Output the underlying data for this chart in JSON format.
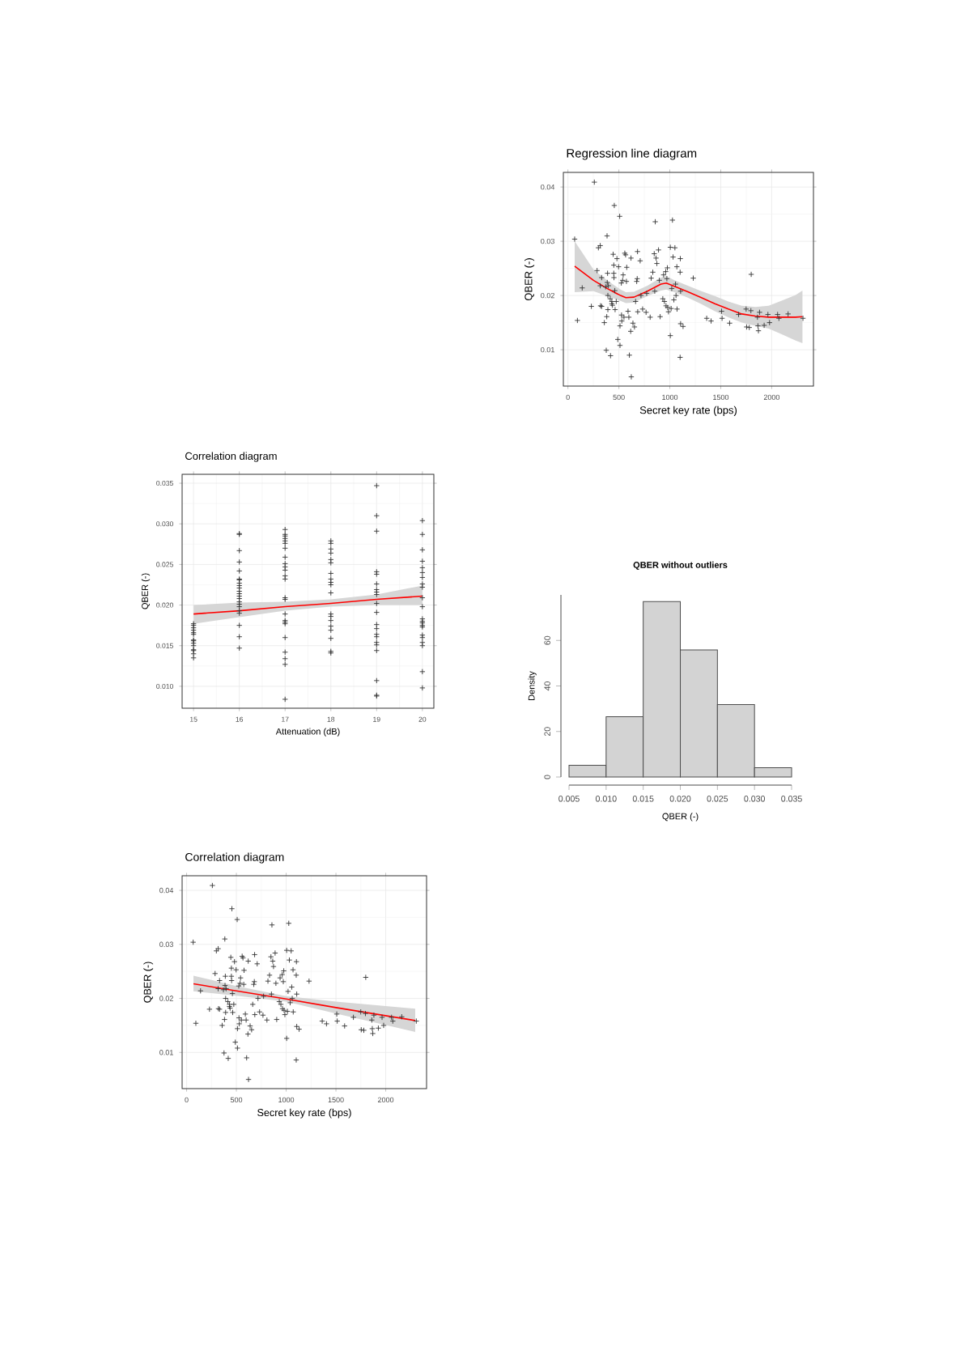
{
  "chart_data": [
    {
      "type": "scatter",
      "title": "Regression line diagram",
      "xlabel": "Secret key rate (bps)",
      "ylabel": "QBER (-)",
      "xlim": [
        -45,
        2410
      ],
      "ylim": [
        0.0033,
        0.0427
      ],
      "xticks": [
        0,
        500,
        1000,
        1500,
        2000
      ],
      "yticks": [
        0.01,
        0.02,
        0.03,
        0.04
      ],
      "grid": true,
      "marker": "cross",
      "series": [
        {
          "type": "scatter",
          "color": "#333333",
          "x": [
            66,
            93,
            140,
            230,
            259,
            286,
            299,
            317,
            317,
            320,
            331,
            331,
            357,
            370,
            376,
            381,
            384,
            386,
            389,
            392,
            392,
            397,
            418,
            415,
            431,
            431,
            437,
            444,
            450,
            450,
            452,
            455,
            460,
            463,
            474,
            481,
            489,
            497,
            508,
            511,
            511,
            524,
            526,
            529,
            537,
            542,
            550,
            558,
            566,
            574,
            577,
            590,
            598,
            603,
            616,
            619,
            622,
            638,
            653,
            664,
            675,
            680,
            683,
            685,
            709,
            717,
            733,
            767,
            773,
            807,
            817,
            833,
            847,
            852,
            857,
            865,
            873,
            889,
            897,
            905,
            931,
            939,
            947,
            960,
            963,
            971,
            976,
            979,
            987,
            1005,
            1005,
            1013,
            1019,
            1026,
            1032,
            1040,
            1050,
            1056,
            1061,
            1069,
            1071,
            1103,
            1101,
            1106,
            1101,
            1106,
            1130,
            1230,
            1362,
            1405,
            1508,
            1513,
            1587,
            1675,
            1749,
            1754,
            1780,
            1799,
            1796,
            1860,
            1865,
            1870,
            1881,
            1926,
            1963,
            1979,
            2058,
            2071,
            2161,
            2307
          ],
          "values": [
            0.0304,
            0.0154,
            0.0214,
            0.018,
            0.0409,
            0.0246,
            0.0288,
            0.0292,
            0.0218,
            0.0181,
            0.018,
            0.0233,
            0.015,
            0.0216,
            0.0099,
            0.0161,
            0.031,
            0.0224,
            0.0241,
            0.0174,
            0.02,
            0.0218,
            0.0089,
            0.0194,
            0.0189,
            0.0185,
            0.0182,
            0.0276,
            0.0256,
            0.0241,
            0.0233,
            0.0366,
            0.0209,
            0.0174,
            0.0189,
            0.0268,
            0.0119,
            0.0253,
            0.0346,
            0.0144,
            0.0108,
            0.0223,
            0.0164,
            0.0153,
            0.0228,
            0.0238,
            0.016,
            0.0278,
            0.0275,
            0.0226,
            0.0252,
            0.0171,
            0.016,
            0.009,
            0.0134,
            0.0269,
            0.005,
            0.0149,
            0.0142,
            0.0189,
            0.0226,
            0.0231,
            0.0281,
            0.017,
            0.0264,
            0.02,
            0.0175,
            0.0169,
            0.0204,
            0.016,
            0.0232,
            0.0243,
            0.0277,
            0.0208,
            0.0336,
            0.0269,
            0.0259,
            0.0284,
            0.0228,
            0.0161,
            0.0194,
            0.0238,
            0.0189,
            0.0244,
            0.0181,
            0.0231,
            0.0251,
            0.0178,
            0.017,
            0.0126,
            0.0289,
            0.0176,
            0.0213,
            0.0339,
            0.0271,
            0.0192,
            0.0288,
            0.0221,
            0.02,
            0.0253,
            0.0175,
            0.0268,
            0.0243,
            0.0208,
            0.0086,
            0.0148,
            0.0143,
            0.0232,
            0.0158,
            0.0153,
            0.0171,
            0.0158,
            0.0149,
            0.0165,
            0.0175,
            0.0142,
            0.0141,
            0.0239,
            0.0172,
            0.016,
            0.0144,
            0.0135,
            0.0169,
            0.0145,
            0.0165,
            0.015,
            0.0165,
            0.0158,
            0.0166,
            0.0158
          ]
        },
        {
          "type": "line",
          "marker": "none",
          "color": "#ff0000",
          "x": [
            66,
            251,
            384,
            516,
            569,
            648,
            780,
            913,
            966,
            1045,
            1177,
            1310,
            1442,
            1574,
            1706,
            1839,
            1971,
            2103,
            2235,
            2302
          ],
          "values": [
            0.0254,
            0.0228,
            0.0213,
            0.02,
            0.0196,
            0.0197,
            0.0208,
            0.0221,
            0.0223,
            0.0217,
            0.0207,
            0.0196,
            0.0185,
            0.0175,
            0.0166,
            0.0162,
            0.016,
            0.016,
            0.016,
            0.0161
          ],
          "lower": [
            0.0206,
            0.0208,
            0.0199,
            0.019,
            0.0186,
            0.0187,
            0.0199,
            0.0209,
            0.0211,
            0.0206,
            0.0196,
            0.0184,
            0.0171,
            0.016,
            0.015,
            0.0144,
            0.0139,
            0.0128,
            0.0117,
            0.0112
          ],
          "upper": [
            0.03,
            0.0248,
            0.0228,
            0.0211,
            0.0206,
            0.0207,
            0.0218,
            0.0233,
            0.0236,
            0.0228,
            0.0218,
            0.0208,
            0.0199,
            0.0189,
            0.0181,
            0.0179,
            0.0181,
            0.0191,
            0.0201,
            0.0209
          ]
        }
      ]
    },
    {
      "type": "scatter",
      "title": "Correlation diagram",
      "xlabel": "Attenuation (dB)",
      "ylabel": "QBER (-)",
      "xlim": [
        14.75,
        20.25
      ],
      "ylim": [
        0.0073,
        0.0361
      ],
      "xticks": [
        15,
        16,
        17,
        18,
        19,
        20
      ],
      "yticks": [
        {
          "value": 0.01,
          "label": "0.010"
        },
        0.015,
        {
          "value": 0.02,
          "label": "0.020"
        },
        0.025,
        {
          "value": 0.03,
          "label": "0.030"
        },
        0.035
      ],
      "grid": true,
      "marker": "cross",
      "series": [
        {
          "type": "scatter",
          "color": "#333333",
          "x": [
            15,
            15,
            15,
            15,
            15,
            15,
            15,
            15,
            15,
            15,
            15,
            15,
            15,
            15,
            16,
            16,
            16,
            16,
            16,
            16,
            16,
            16,
            16,
            16,
            16,
            16,
            16,
            16,
            16,
            16,
            16,
            16,
            16,
            16,
            16,
            16,
            17,
            17,
            17,
            17,
            17,
            17,
            17,
            17,
            17,
            17,
            17,
            17,
            17,
            17,
            17,
            17,
            17,
            17,
            17,
            17,
            17,
            17,
            17,
            17,
            18,
            18,
            18,
            18,
            18,
            18,
            18,
            18,
            18,
            18,
            18,
            18,
            18,
            18,
            18,
            18,
            18,
            18,
            18,
            19,
            19,
            19,
            19,
            19,
            19,
            19,
            19,
            19,
            19,
            19,
            19,
            19,
            19,
            19,
            19,
            19,
            19,
            19,
            19,
            19,
            20,
            20,
            20,
            20,
            20,
            20,
            20,
            20,
            20,
            20,
            20,
            20,
            20,
            20,
            20,
            20,
            20,
            20,
            20,
            20,
            20,
            20
          ],
          "values": [
            0.0177,
            0.0175,
            0.0172,
            0.0169,
            0.0166,
            0.0164,
            0.0157,
            0.0156,
            0.0153,
            0.015,
            0.0145,
            0.0144,
            0.014,
            0.0135,
            0.0288,
            0.0287,
            0.0267,
            0.0253,
            0.0242,
            0.0232,
            0.0231,
            0.0227,
            0.0224,
            0.0221,
            0.0217,
            0.0214,
            0.0211,
            0.0208,
            0.0204,
            0.0201,
            0.0198,
            0.0193,
            0.019,
            0.0175,
            0.0161,
            0.0147,
            0.0293,
            0.0287,
            0.0285,
            0.0282,
            0.0279,
            0.0276,
            0.027,
            0.0259,
            0.0251,
            0.0247,
            0.0243,
            0.0236,
            0.0232,
            0.0209,
            0.0207,
            0.0189,
            0.0181,
            0.0179,
            0.0177,
            0.016,
            0.0142,
            0.0134,
            0.0127,
            0.0084,
            0.0279,
            0.0276,
            0.0269,
            0.0264,
            0.0256,
            0.0252,
            0.0239,
            0.0232,
            0.0228,
            0.0225,
            0.0215,
            0.0189,
            0.0186,
            0.0181,
            0.0174,
            0.0169,
            0.0159,
            0.0143,
            0.0141,
            0.0347,
            0.031,
            0.0291,
            0.0241,
            0.0238,
            0.0226,
            0.0219,
            0.0216,
            0.0213,
            0.0202,
            0.0191,
            0.0176,
            0.0171,
            0.0164,
            0.0161,
            0.0154,
            0.0151,
            0.0144,
            0.0107,
            0.0089,
            0.0088,
            0.0304,
            0.0287,
            0.0268,
            0.0254,
            0.0246,
            0.024,
            0.0234,
            0.0226,
            0.0222,
            0.0209,
            0.0198,
            0.0183,
            0.018,
            0.0178,
            0.0175,
            0.0173,
            0.0163,
            0.016,
            0.0154,
            0.015,
            0.0118,
            0.0098
          ]
        },
        {
          "type": "line",
          "marker": "none",
          "color": "#ff0000",
          "x": [
            15,
            16,
            17,
            18,
            19,
            20
          ],
          "values": [
            0.0189,
            0.0193,
            0.0198,
            0.0202,
            0.0207,
            0.0211
          ],
          "lower": [
            0.0177,
            0.0185,
            0.0193,
            0.0198,
            0.02,
            0.02
          ],
          "upper": [
            0.02,
            0.0203,
            0.0204,
            0.0207,
            0.0213,
            0.0224
          ]
        }
      ]
    },
    {
      "type": "histogram",
      "title": "QBER without outliers",
      "xlabel": "QBER (-)",
      "ylabel": "Density",
      "color": "#d3d3d3",
      "bins": [
        0.005,
        0.01,
        0.015,
        0.02,
        0.025,
        0.03,
        0.035
      ],
      "values": [
        5.2,
        26.5,
        77.1,
        55.8,
        31.8,
        4.1
      ],
      "xlim": [
        0.005,
        0.035
      ],
      "ylim": [
        0,
        80
      ],
      "xticks": [
        0.005,
        {
          "value": 0.01,
          "label": "0.010"
        },
        0.015,
        {
          "value": 0.02,
          "label": "0.020"
        },
        0.025,
        {
          "value": 0.03,
          "label": "0.030"
        },
        0.035
      ],
      "yticks": [
        0,
        20,
        40,
        60
      ]
    },
    {
      "type": "scatter",
      "title": "Correlation diagram",
      "xlabel": "Secret key rate (bps)",
      "ylabel": "QBER (-)",
      "xlim": [
        -45,
        2410
      ],
      "ylim": [
        0.0033,
        0.0427
      ],
      "xticks": [
        0,
        500,
        1000,
        1500,
        2000
      ],
      "yticks": [
        0.01,
        0.02,
        0.03,
        0.04
      ],
      "grid": true,
      "marker": "cross",
      "series": [
        {
          "type": "scatter",
          "color": "#333333",
          "x": [
            66,
            93,
            140,
            230,
            259,
            286,
            299,
            317,
            317,
            320,
            331,
            331,
            357,
            370,
            376,
            381,
            384,
            386,
            389,
            392,
            392,
            397,
            418,
            415,
            431,
            431,
            437,
            444,
            450,
            450,
            452,
            455,
            460,
            463,
            474,
            481,
            489,
            497,
            508,
            511,
            511,
            524,
            526,
            529,
            537,
            542,
            550,
            558,
            566,
            574,
            577,
            590,
            598,
            603,
            616,
            619,
            622,
            638,
            653,
            664,
            675,
            680,
            683,
            685,
            709,
            717,
            733,
            767,
            773,
            807,
            817,
            833,
            847,
            852,
            857,
            865,
            873,
            889,
            897,
            905,
            931,
            939,
            947,
            960,
            963,
            971,
            976,
            979,
            987,
            1005,
            1005,
            1013,
            1019,
            1026,
            1032,
            1040,
            1050,
            1056,
            1061,
            1069,
            1071,
            1103,
            1101,
            1106,
            1101,
            1106,
            1130,
            1230,
            1362,
            1405,
            1508,
            1513,
            1587,
            1675,
            1749,
            1754,
            1780,
            1799,
            1796,
            1860,
            1865,
            1870,
            1881,
            1926,
            1963,
            1979,
            2058,
            2071,
            2161,
            2307
          ],
          "values": [
            0.0304,
            0.0154,
            0.0214,
            0.018,
            0.0409,
            0.0246,
            0.0288,
            0.0292,
            0.0218,
            0.0181,
            0.018,
            0.0233,
            0.015,
            0.0216,
            0.0099,
            0.0161,
            0.031,
            0.0224,
            0.0241,
            0.0174,
            0.02,
            0.0218,
            0.0089,
            0.0194,
            0.0189,
            0.0185,
            0.0182,
            0.0276,
            0.0256,
            0.0241,
            0.0233,
            0.0366,
            0.0209,
            0.0174,
            0.0189,
            0.0268,
            0.0119,
            0.0253,
            0.0346,
            0.0144,
            0.0108,
            0.0223,
            0.0164,
            0.0153,
            0.0228,
            0.0238,
            0.016,
            0.0278,
            0.0275,
            0.0226,
            0.0252,
            0.0171,
            0.016,
            0.009,
            0.0134,
            0.0269,
            0.005,
            0.0149,
            0.0142,
            0.0189,
            0.0226,
            0.0231,
            0.0281,
            0.017,
            0.0264,
            0.02,
            0.0175,
            0.0169,
            0.0204,
            0.016,
            0.0232,
            0.0243,
            0.0277,
            0.0208,
            0.0336,
            0.0269,
            0.0259,
            0.0284,
            0.0228,
            0.0161,
            0.0194,
            0.0238,
            0.0189,
            0.0244,
            0.0181,
            0.0231,
            0.0251,
            0.0178,
            0.017,
            0.0126,
            0.0289,
            0.0176,
            0.0213,
            0.0339,
            0.0271,
            0.0192,
            0.0288,
            0.0221,
            0.02,
            0.0253,
            0.0175,
            0.0268,
            0.0243,
            0.0208,
            0.0086,
            0.0148,
            0.0143,
            0.0232,
            0.0158,
            0.0153,
            0.0171,
            0.0158,
            0.0149,
            0.0165,
            0.0175,
            0.0142,
            0.0141,
            0.0239,
            0.0172,
            0.016,
            0.0144,
            0.0135,
            0.0169,
            0.0145,
            0.0165,
            0.015,
            0.0165,
            0.0158,
            0.0166,
            0.0158
          ]
        },
        {
          "type": "line",
          "marker": "none",
          "color": "#ff0000",
          "x": [
            69,
            500,
            1000,
            1500,
            2296
          ],
          "values": [
            0.0227,
            0.0214,
            0.0199,
            0.0183,
            0.0159
          ],
          "lower": [
            0.0213,
            0.0205,
            0.0194,
            0.0172,
            0.0138
          ],
          "upper": [
            0.0242,
            0.0223,
            0.0204,
            0.0194,
            0.0181
          ]
        }
      ]
    }
  ]
}
